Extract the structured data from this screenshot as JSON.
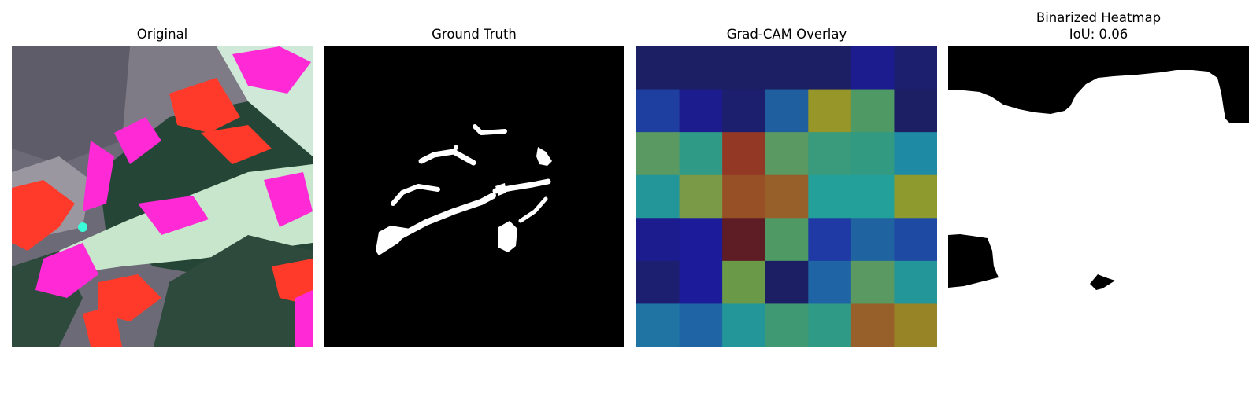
{
  "panels": [
    {
      "title": "Original"
    },
    {
      "title": "Ground Truth"
    },
    {
      "title": "Grad-CAM Overlay"
    },
    {
      "title": "Binarized Heatmap",
      "subtitle": "IoU: 0.06"
    }
  ],
  "grad_cam": {
    "rows": 7,
    "cols": 7,
    "cells": [
      [
        "#1c1f64",
        "#1c1f64",
        "#1c1f64",
        "#1c1f64",
        "#1c1f64",
        "#1c1c8e",
        "#1c1f6e"
      ],
      [
        "#1f3fa0",
        "#1c1c8e",
        "#1c1f6e",
        "#1f5fa0",
        "#979628",
        "#4f9a64",
        "#1c1f64"
      ],
      [
        "#5a9a62",
        "#2f9a86",
        "#943826",
        "#5a9a62",
        "#399a7c",
        "#339a82",
        "#1f8aa4"
      ],
      [
        "#23969a",
        "#7a9a48",
        "#975026",
        "#97602a",
        "#23a09a",
        "#23a09a",
        "#8e9a2e"
      ],
      [
        "#1c1c8e",
        "#1c1c9a",
        "#5e1c24",
        "#4f9a64",
        "#1f3aa4",
        "#1f64a0",
        "#1f4aa4"
      ],
      [
        "#1c1f70",
        "#1c1c9a",
        "#6a9a48",
        "#1c1f64",
        "#1f64a4",
        "#5a9a62",
        "#23969a"
      ],
      [
        "#1f74a4",
        "#1f64a4",
        "#23969a",
        "#3f9a74",
        "#2f9a86",
        "#97602a",
        "#978426"
      ]
    ]
  }
}
